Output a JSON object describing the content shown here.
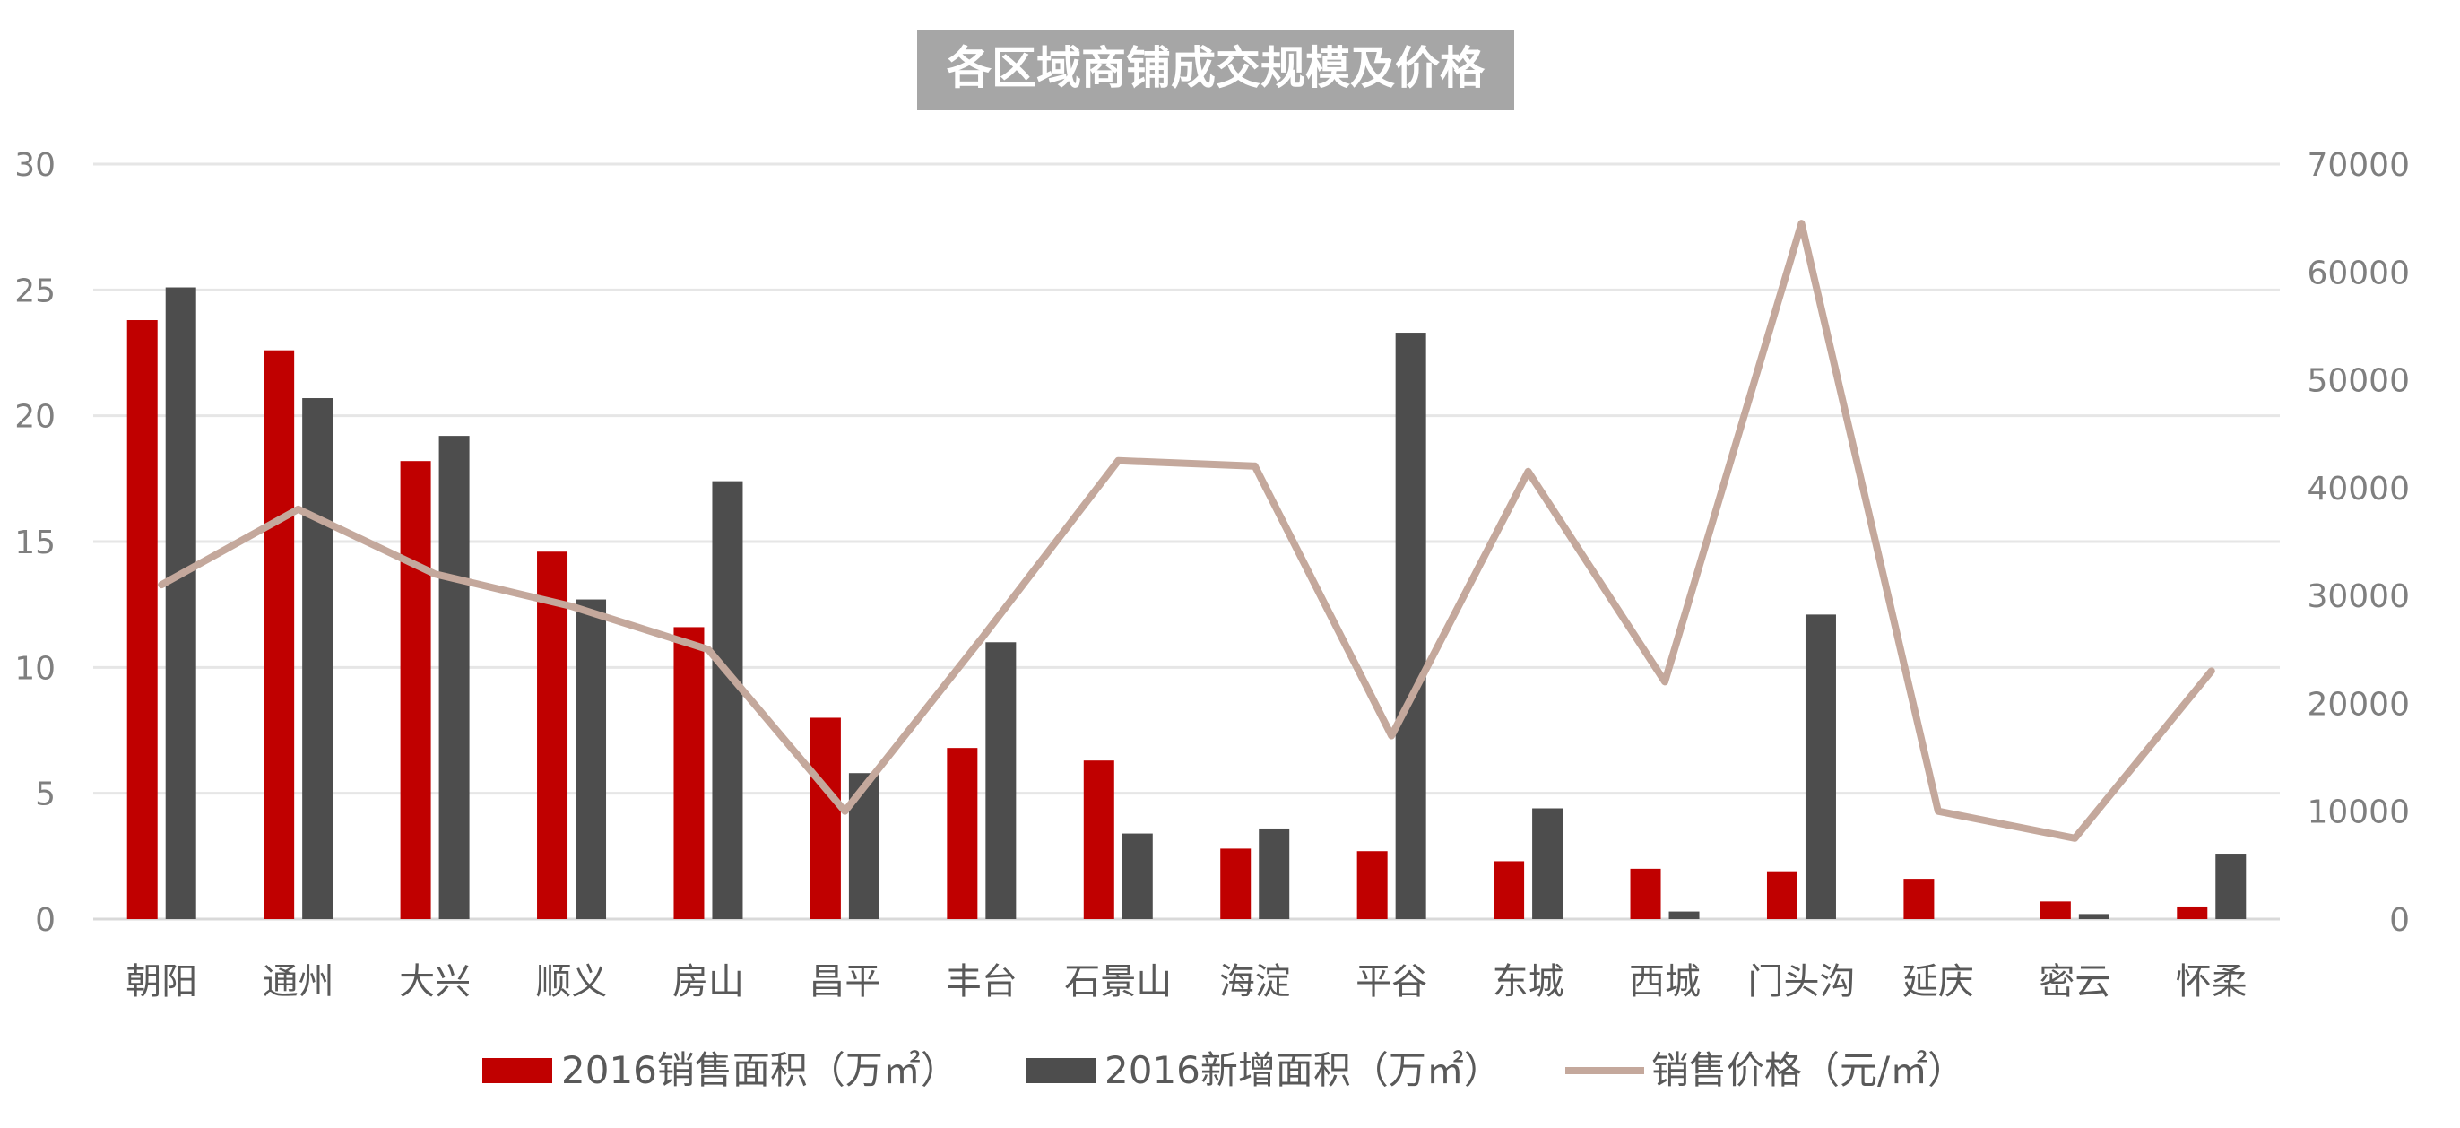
{
  "chart_data": {
    "type": "bar",
    "title": "各区域商铺成交规模及价格",
    "categories": [
      "朝阳",
      "通州",
      "大兴",
      "顺义",
      "房山",
      "昌平",
      "丰台",
      "石景山",
      "海淀",
      "平谷",
      "东城",
      "西城",
      "门头沟",
      "延庆",
      "密云",
      "怀柔"
    ],
    "series": [
      {
        "name": "2016销售面积（万㎡）",
        "type": "bar",
        "axis": "left",
        "color": "#c00000",
        "values": [
          23.8,
          22.6,
          18.2,
          14.6,
          11.6,
          8.0,
          6.8,
          6.3,
          2.8,
          2.7,
          2.3,
          2.0,
          1.9,
          1.6,
          0.7,
          0.5
        ]
      },
      {
        "name": "2016新增面积（万㎡）",
        "type": "bar",
        "axis": "left",
        "color": "#4d4d4d",
        "values": [
          25.1,
          20.7,
          19.2,
          12.7,
          17.4,
          5.8,
          11.0,
          3.4,
          3.6,
          23.3,
          4.4,
          0.3,
          12.1,
          0,
          0.2,
          2.6
        ]
      },
      {
        "name": "销售价格（元/㎡）",
        "type": "line",
        "axis": "right",
        "color": "#c4a89c",
        "values": [
          31000,
          38000,
          32000,
          29000,
          25000,
          10000,
          26000,
          42500,
          42000,
          17000,
          41500,
          22000,
          64500,
          10000,
          7500,
          23000
        ]
      }
    ],
    "y_left": {
      "min": 0,
      "max": 30,
      "ticks": [
        "0",
        "5",
        "10",
        "15",
        "20",
        "25",
        "30"
      ]
    },
    "y_right": {
      "min": 0,
      "max": 70000,
      "ticks": [
        "0",
        "10000",
        "20000",
        "30000",
        "40000",
        "50000",
        "60000",
        "70000"
      ]
    },
    "grid": true,
    "legend_position": "bottom"
  }
}
